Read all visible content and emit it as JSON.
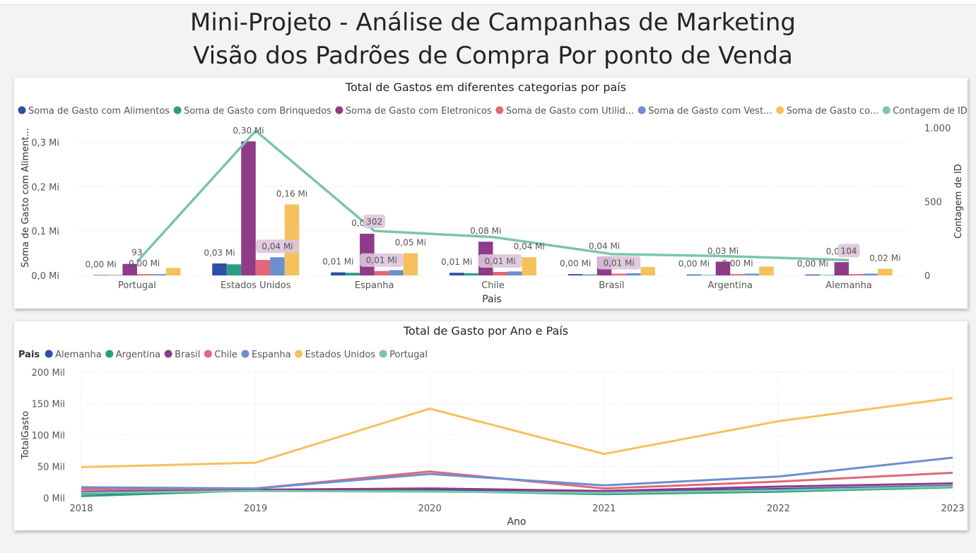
{
  "page": {
    "title_line1": "Mini-Projeto - Análise de Campanhas de Marketing",
    "title_line2": "Visão dos Padrões de Compra Por ponto de Venda"
  },
  "chart_data": [
    {
      "type": "bar",
      "title": "Total de Gastos em diferentes categorias por país",
      "xlabel": "Pais",
      "ylabel": "Soma de Gasto com Aliment...",
      "y2label": "Contagem de ID",
      "categories": [
        "Portugal",
        "Estados Unidos",
        "Espanha",
        "Chile",
        "Brasil",
        "Argentina",
        "Alemanha"
      ],
      "ylim": [
        0,
        0.35
      ],
      "y_ticks": [
        0,
        0.1,
        0.2,
        0.3
      ],
      "y_tick_labels": [
        "0,0 Mi",
        "0,1 Mi",
        "0,2 Mi",
        "0,3 Mi"
      ],
      "y2lim": [
        0,
        1000
      ],
      "y2_ticks": [
        0,
        500,
        1000
      ],
      "y2_tick_labels": [
        "0",
        "500",
        "1.000"
      ],
      "legend_position": "top",
      "series": [
        {
          "name": "Soma de Gasto com Alimentos",
          "color": "#2e4fa3",
          "values": [
            0.001,
            0.027,
            0.007,
            0.006,
            0.003,
            0.002,
            0.002
          ]
        },
        {
          "name": "Soma de Gasto com Brinquedos",
          "color": "#2a9d84",
          "values": [
            0.001,
            0.025,
            0.006,
            0.005,
            0.002,
            0.001,
            0.001
          ]
        },
        {
          "name": "Soma de Gasto com Eletronicos",
          "color": "#8e3b8a",
          "values": [
            0.026,
            0.302,
            0.094,
            0.076,
            0.042,
            0.031,
            0.03
          ]
        },
        {
          "name": "Soma de Gasto com Utilid...",
          "color": "#e0687a",
          "values": [
            0.003,
            0.035,
            0.01,
            0.008,
            0.004,
            0.003,
            0.003
          ]
        },
        {
          "name": "Soma de Gasto com Vest...",
          "color": "#6b8fcf",
          "values": [
            0.003,
            0.041,
            0.012,
            0.009,
            0.005,
            0.004,
            0.004
          ]
        },
        {
          "name": "Soma de Gasto co...",
          "color": "#f5c15c",
          "values": [
            0.017,
            0.16,
            0.05,
            0.041,
            0.019,
            0.02,
            0.015
          ]
        }
      ],
      "line_series": {
        "name": "Contagem de ID",
        "color": "#7ac6a8",
        "values": [
          93,
          980,
          302,
          260,
          145,
          130,
          104
        ]
      },
      "data_labels": [
        {
          "cat": 0,
          "series": 0,
          "text": "0,00 Mi"
        },
        {
          "cat": 0,
          "series": 2,
          "text": "93",
          "line": true
        },
        {
          "cat": 0,
          "series": 3,
          "text": "0,00 Mi"
        },
        {
          "cat": 1,
          "series": 0,
          "text": "0,03 Mi"
        },
        {
          "cat": 1,
          "series": 2,
          "text": "0,30 Mi"
        },
        {
          "cat": 1,
          "series": 4,
          "text": "0,04 Mi",
          "boxed": true
        },
        {
          "cat": 1,
          "series": 5,
          "text": "0,16 Mi"
        },
        {
          "cat": 2,
          "series": 0,
          "text": "0,01 Mi"
        },
        {
          "cat": 2,
          "series": 2,
          "text": "0,09 Mi"
        },
        {
          "cat": 2,
          "series": 2,
          "text": "302",
          "line": true,
          "boxed": true
        },
        {
          "cat": 2,
          "series": 3,
          "text": "0,01 Mi",
          "boxed": true
        },
        {
          "cat": 2,
          "series": 5,
          "text": "0,05 Mi"
        },
        {
          "cat": 3,
          "series": 0,
          "text": "0,01 Mi"
        },
        {
          "cat": 3,
          "series": 2,
          "text": "0,08 Mi"
        },
        {
          "cat": 3,
          "series": 3,
          "text": "0,01 Mi",
          "boxed": true
        },
        {
          "cat": 3,
          "series": 5,
          "text": "0,04 Mi"
        },
        {
          "cat": 4,
          "series": 0,
          "text": "0,00 Mi"
        },
        {
          "cat": 4,
          "series": 2,
          "text": "0,04 Mi"
        },
        {
          "cat": 4,
          "series": 3,
          "text": "0,01 Mi",
          "boxed": true
        },
        {
          "cat": 5,
          "series": 0,
          "text": "0,00 Mi"
        },
        {
          "cat": 5,
          "series": 2,
          "text": "0,03 Mi"
        },
        {
          "cat": 5,
          "series": 3,
          "text": "0,00 Mi"
        },
        {
          "cat": 6,
          "series": 0,
          "text": "0,00 Mi"
        },
        {
          "cat": 6,
          "series": 2,
          "text": "0,03 Mi"
        },
        {
          "cat": 6,
          "series": 2,
          "text": "104",
          "line": true,
          "boxed": true
        },
        {
          "cat": 6,
          "series": 5,
          "text": "0,02 Mi"
        }
      ]
    },
    {
      "type": "line",
      "title": "Total de Gasto por Ano e País",
      "xlabel": "Ano",
      "ylabel": "TotalGasto",
      "legend_title": "Pais",
      "legend_position": "top-left",
      "x": [
        2018,
        2019,
        2020,
        2021,
        2022,
        2023
      ],
      "x_tick_labels": [
        "2018",
        "2019",
        "2020",
        "2021",
        "2022",
        "2023"
      ],
      "ylim": [
        0,
        200000
      ],
      "y_ticks": [
        0,
        50000,
        100000,
        150000,
        200000
      ],
      "y_tick_labels": [
        "0 Mil",
        "50 Mil",
        "100 Mil",
        "150 Mil",
        "200 Mil"
      ],
      "grid": true,
      "series": [
        {
          "name": "Alemanha",
          "color": "#2e4fa3",
          "values": [
            7000,
            12000,
            13000,
            9000,
            14000,
            19000
          ]
        },
        {
          "name": "Argentina",
          "color": "#2a9d84",
          "values": [
            3000,
            12000,
            11000,
            6000,
            10000,
            17000
          ]
        },
        {
          "name": "Brasil",
          "color": "#8e3b8a",
          "values": [
            10000,
            13000,
            15000,
            11000,
            18000,
            23000
          ]
        },
        {
          "name": "Chile",
          "color": "#e0687a",
          "values": [
            14000,
            15000,
            42000,
            15000,
            26000,
            40000
          ]
        },
        {
          "name": "Espanha",
          "color": "#6b8fcf",
          "values": [
            17000,
            15000,
            38000,
            20000,
            34000,
            64000
          ]
        },
        {
          "name": "Estados Unidos",
          "color": "#f5c15c",
          "values": [
            49000,
            56000,
            142000,
            70000,
            122000,
            159000
          ]
        },
        {
          "name": "Portugal",
          "color": "#7ac6a8",
          "values": [
            8000,
            11000,
            10000,
            8000,
            12000,
            18000
          ]
        }
      ]
    }
  ]
}
